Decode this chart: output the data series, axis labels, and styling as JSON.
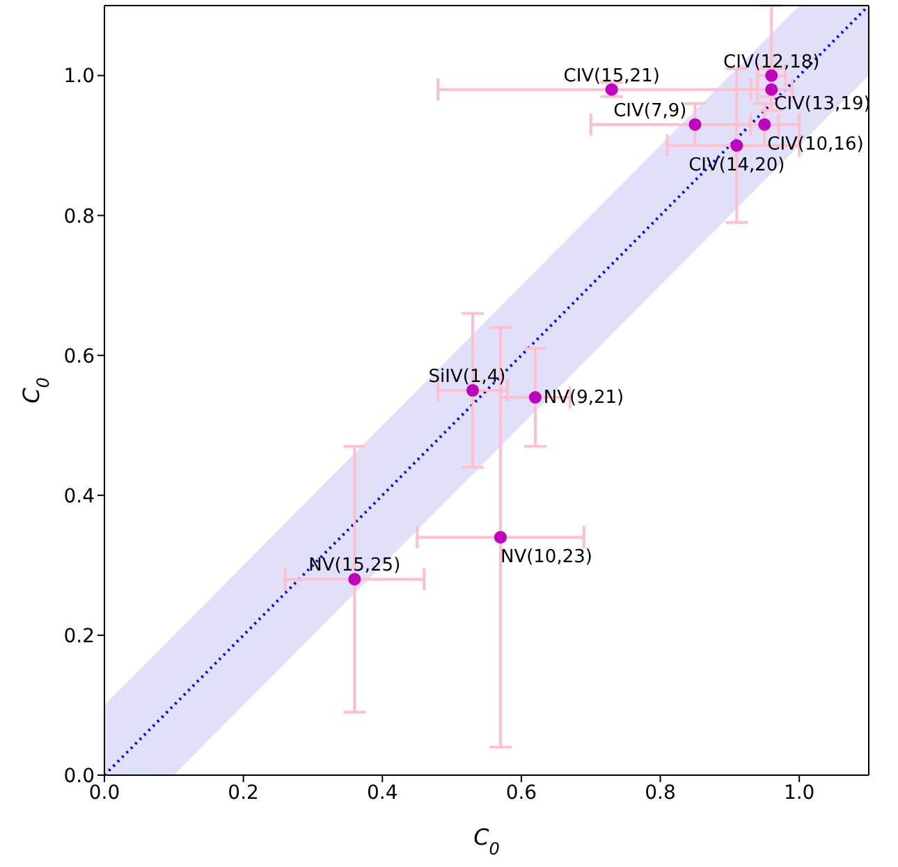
{
  "chart_data": {
    "type": "scatter",
    "xlabel": "C$_{0}$",
    "ylabel": "C$_{0}$",
    "xlim": [
      0,
      1.1
    ],
    "ylim": [
      0,
      1.1
    ],
    "xticks": [
      {
        "value": 0,
        "label": "0.0"
      },
      0.2,
      0.4,
      0.6,
      0.8,
      {
        "value": 1,
        "label": "1.0"
      }
    ],
    "yticks": [
      {
        "value": 0,
        "label": "0.0"
      },
      0.2,
      0.4,
      0.6,
      0.8,
      {
        "value": 1,
        "label": "1.0"
      }
    ],
    "grid": false,
    "legend": false,
    "series": [
      {
        "type": "line",
        "color": "#0000ff",
        "line_style": "dotted",
        "marker": "none",
        "x": [
          0,
          0.1,
          1.0,
          1.1
        ],
        "values": [
          0,
          0.1,
          1.0,
          1.1
        ],
        "lower": [
          0,
          0,
          0.9,
          1.0
        ],
        "upper": [
          0.1,
          0.2,
          1.1,
          1.1
        ]
      },
      {
        "color": "#bf00bf",
        "marker": "circle",
        "x": [
          0.73,
          0.96,
          0.96,
          0.85,
          0.95,
          0.91,
          0.53,
          0.62,
          0.57,
          0.36
        ],
        "values": [
          0.98,
          1.0,
          0.98,
          0.93,
          0.93,
          0.9,
          0.55,
          0.54,
          0.34,
          0.28
        ],
        "errors": [
          [
            0.97,
            0.99
          ],
          [
            0.97,
            1.1
          ],
          [
            0.95,
            1.01
          ],
          [
            0.9,
            0.96
          ],
          [
            0.9,
            0.96
          ],
          [
            0.79,
            1.01
          ],
          [
            0.44,
            0.66
          ],
          [
            0.47,
            0.61
          ],
          [
            0.04,
            0.64
          ],
          [
            0.09,
            0.47
          ]
        ],
        "xerrors": [
          [
            0.48,
            0.94
          ],
          [
            0.94,
            0.98
          ],
          [
            0.93,
            0.99
          ],
          [
            0.7,
            1.0
          ],
          [
            0.93,
            0.97
          ],
          [
            0.81,
            1.0
          ],
          [
            0.48,
            0.58
          ],
          [
            0.57,
            0.67
          ],
          [
            0.45,
            0.69
          ],
          [
            0.26,
            0.46
          ]
        ]
      }
    ],
    "annotations": [
      {
        "text": "CIV(15,21)",
        "x": 0.73,
        "y": 0.98
      },
      {
        "text": "CIV(12,18)",
        "x": 0.96,
        "y": 1.0
      },
      {
        "text": "CIV(13,19)",
        "x": 0.96,
        "y": 0.98
      },
      {
        "text": "CIV(7,9)",
        "x": 0.85,
        "y": 0.93
      },
      {
        "text": "CIV(10,16)",
        "x": 0.95,
        "y": 0.93
      },
      {
        "text": "CIV(14,20)",
        "x": 0.91,
        "y": 0.9
      },
      {
        "text": "SiIV(1,4)",
        "x": 0.53,
        "y": 0.55
      },
      {
        "text": "NV(9,21)",
        "x": 0.62,
        "y": 0.54
      },
      {
        "text": "NV(10,23)",
        "x": 0.57,
        "y": 0.34
      },
      {
        "text": "NV(15,25)",
        "x": 0.36,
        "y": 0.28
      }
    ]
  }
}
